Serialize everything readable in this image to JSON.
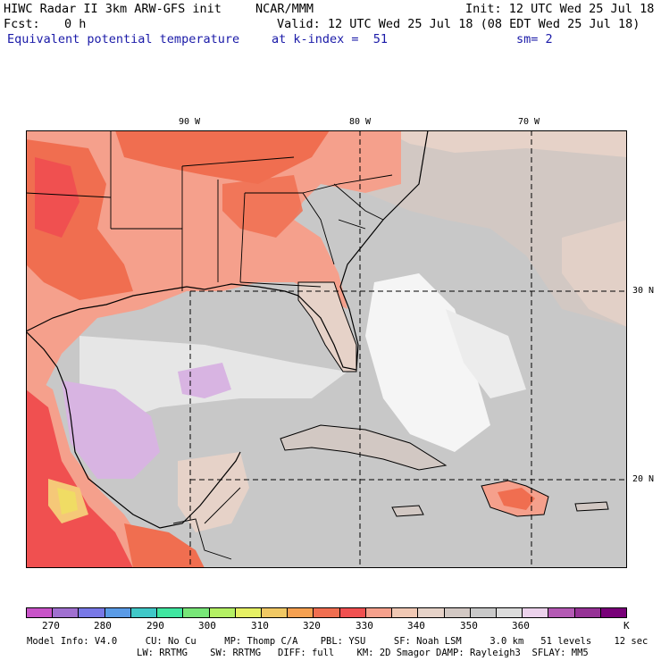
{
  "header": {
    "title": "HIWC Radar II 3km ARW-GFS init",
    "org": "NCAR/MMM",
    "init": "Init: 12 UTC Wed 25 Jul 18",
    "fcst_label": "Fcst:",
    "fcst_value": "0 h",
    "valid": "Valid: 12 UTC Wed 25 Jul 18 (08 EDT Wed 25 Jul 18)",
    "field": "Equivalent potential temperature",
    "level": "at k-index =  51",
    "smooth": "sm= 2"
  },
  "map": {
    "lon_labels": [
      "90 W",
      "80 W",
      "70 W"
    ],
    "lat_labels": [
      "30 N",
      "20 N"
    ]
  },
  "colorbar": {
    "colors": [
      "#c853c8",
      "#a070d0",
      "#7878e6",
      "#5a9be6",
      "#40c8c8",
      "#40e6a0",
      "#78e678",
      "#b4f064",
      "#e6f064",
      "#f0c864",
      "#f5a050",
      "#f06e50",
      "#f05050",
      "#f5a08c",
      "#f0c8b4",
      "#e6d2c8",
      "#d2c8c3",
      "#c8c8c8",
      "#dcdcdc",
      "#ecd2ec",
      "#b45ab4",
      "#963296",
      "#780078"
    ],
    "labels": [
      "270",
      "280",
      "290",
      "300",
      "310",
      "320",
      "330",
      "340",
      "350",
      "360"
    ],
    "unit": "K",
    "palette": {
      "warm_land": "#f5a08c",
      "hot": "#f06e50",
      "very_hot": "#f05050",
      "tan": "#e6d2c8",
      "taupe": "#d2c8c3",
      "gray": "#c8c8c8",
      "light_gray": "#e6e6e6",
      "white": "#f5f5f5",
      "lavender": "#d8b4e2",
      "orange_core": "#f5c878",
      "yellow_core": "#f0dc64"
    }
  },
  "footer": {
    "line1": "Model Info: V4.0     CU: No Cu     MP: Thomp C/A    PBL: YSU     SF: Noah LSM     3.0 km   51 levels    12 sec",
    "line2": "LW: RRTMG    SW: RRTMG   DIFF: full    KM: 2D Smagor DAMP: Rayleigh3  SFLAY: MM5"
  }
}
